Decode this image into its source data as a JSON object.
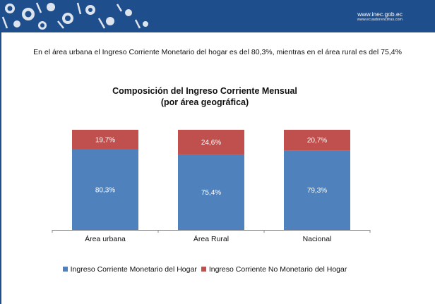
{
  "header": {
    "site_url": "www.inec.gob.ec",
    "site_sub": "www.ecuadorencifras.com",
    "brand_color": "#1f4e8c"
  },
  "headline": "En el área urbana el Ingreso Corriente Monetario del hogar es del 80,3%, mientras en el área rural es del 75,4%",
  "chart_data": {
    "type": "bar",
    "stacked": true,
    "title": "Composición del Ingreso Corriente Mensual",
    "subtitle": "(por área geográfica)",
    "categories": [
      "Área urbana",
      "Área Rural",
      "Nacional"
    ],
    "series": [
      {
        "name": "Ingreso Corriente Monetario del Hogar",
        "color": "#4f81bd",
        "values": [
          80.3,
          75.4,
          79.3
        ],
        "labels": [
          "80,3%",
          "75,4%",
          "79,3%"
        ]
      },
      {
        "name": "Ingreso Corriente No Monetario del Hogar",
        "color": "#c0504d",
        "values": [
          19.7,
          24.6,
          20.7
        ],
        "labels": [
          "19,7%",
          "24,6%",
          "20,7%"
        ]
      }
    ],
    "ylim": [
      0,
      100
    ],
    "grid": false,
    "legend_position": "bottom"
  }
}
